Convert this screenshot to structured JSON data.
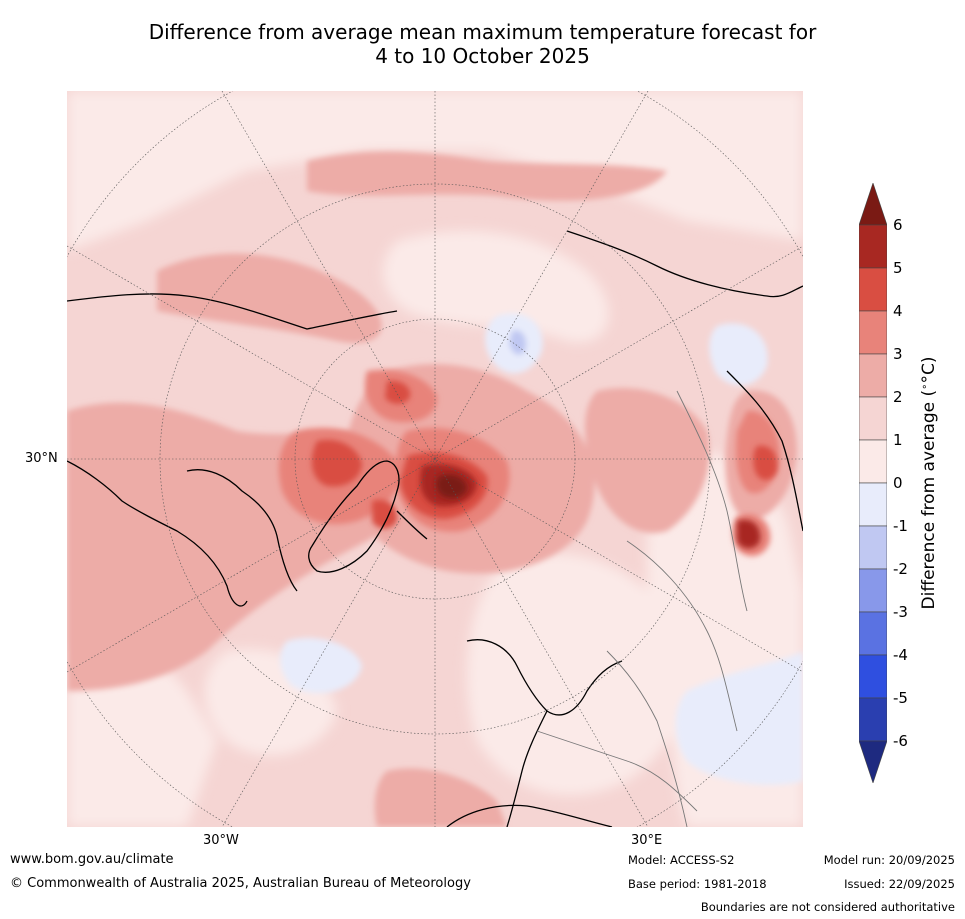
{
  "title": {
    "line1": "Difference from average mean maximum temperature forecast for",
    "line2": "4 to 10 October 2025"
  },
  "map": {
    "projection_labels": {
      "lat_30n": "30°N",
      "lon_30w": "30°W",
      "lon_30e": "30°E"
    },
    "region": "Northern Hemisphere polar view"
  },
  "colorbar": {
    "label": "Difference from average (",
    "label_unit": "°C",
    "label_close": ")",
    "ticks": [
      "6",
      "5",
      "4",
      "3",
      "2",
      "1",
      "0",
      "-1",
      "-2",
      "-3",
      "-4",
      "-5",
      "-6"
    ],
    "colors": {
      "above6": "#7a1a14",
      "5to6": "#a82822",
      "4to5": "#d94e42",
      "3to4": "#e8837a",
      "2to3": "#edaca7",
      "1to2": "#f5d5d3",
      "0to1": "#fbeae8",
      "m1to0": "#e8ecfb",
      "m2tom1": "#c0c8f2",
      "m3tom2": "#8898ea",
      "m4tom3": "#5a72e2",
      "m5tom4": "#2f4fe0",
      "m6tom5": "#2a3fb0",
      "below_m6": "#1e2a80"
    }
  },
  "footer": {
    "website": "www.bom.gov.au/climate",
    "copyright": "© Commonwealth of Australia 2025, Australian Bureau of Meteorology",
    "model": "Model: ACCESS-S2",
    "base_period": "Base period: 1981-2018",
    "model_run": "Model run: 20/09/2025",
    "issued": "Issued: 22/09/2025",
    "disclaimer": "Boundaries are not considered authoritative"
  }
}
